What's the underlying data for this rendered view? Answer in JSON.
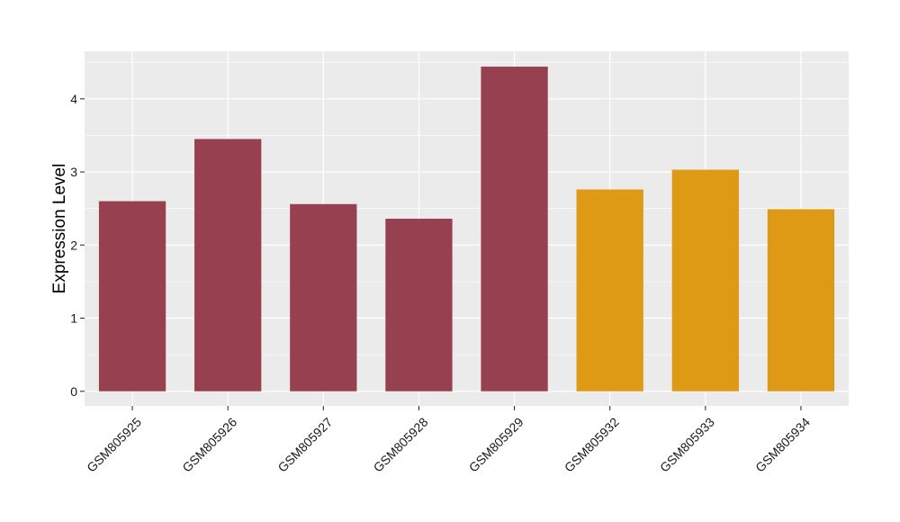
{
  "chart_data": {
    "type": "bar",
    "title": "",
    "xlabel": "",
    "ylabel": "Expression Level",
    "categories": [
      "GSM805925",
      "GSM805926",
      "GSM805927",
      "GSM805928",
      "GSM805929",
      "GSM805932",
      "GSM805933",
      "GSM805934"
    ],
    "values": [
      2.6,
      3.45,
      2.56,
      2.36,
      4.44,
      2.76,
      3.03,
      2.49
    ],
    "groups": [
      1,
      1,
      1,
      1,
      1,
      2,
      2,
      2
    ],
    "group_colors": {
      "1": "#97404F",
      "2": "#DE9915"
    },
    "ylim": [
      -0.2,
      4.65
    ],
    "yticks": [
      0,
      1,
      2,
      3,
      4
    ],
    "grid": true,
    "panel_background": "#EBEBEB",
    "grid_color": "#FFFFFF"
  }
}
